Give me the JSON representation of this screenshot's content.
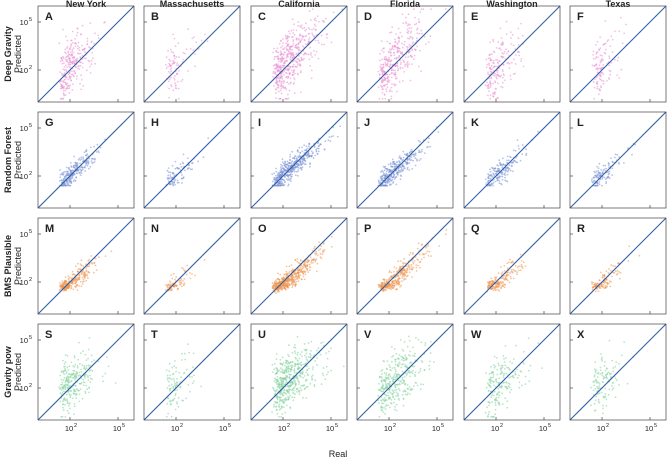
{
  "figure": {
    "xlabel": "Real",
    "ylabel": "Predicted"
  },
  "chart_data": {
    "type": "scatter",
    "grid": false,
    "log_scale": true,
    "xlim": [
      1,
      1000000
    ],
    "ylim": [
      1,
      1000000
    ],
    "x_ticks": [
      100,
      100000
    ],
    "y_ticks": [
      100,
      100000
    ],
    "tick_labels": {
      "base": "10",
      "exponents": [
        "2",
        "5"
      ]
    },
    "columns": [
      "New York",
      "Massachusetts",
      "California",
      "Florida",
      "Washington",
      "Texas"
    ],
    "rows": [
      {
        "name": "Deep Gravity",
        "color": "#e88fd0"
      },
      {
        "name": "Random Forest",
        "color": "#7b93d4"
      },
      {
        "name": "BMS Plausible",
        "color": "#ee9550"
      },
      {
        "name": "Gravity pow",
        "color": "#7fcf9a"
      }
    ],
    "panel_letters": [
      "A",
      "B",
      "C",
      "D",
      "E",
      "F",
      "G",
      "H",
      "I",
      "J",
      "K",
      "L",
      "M",
      "N",
      "O",
      "P",
      "Q",
      "R",
      "S",
      "T",
      "U",
      "V",
      "W",
      "X"
    ],
    "reference_line": {
      "label": "y = x",
      "color": "#2f5fa8"
    }
  }
}
